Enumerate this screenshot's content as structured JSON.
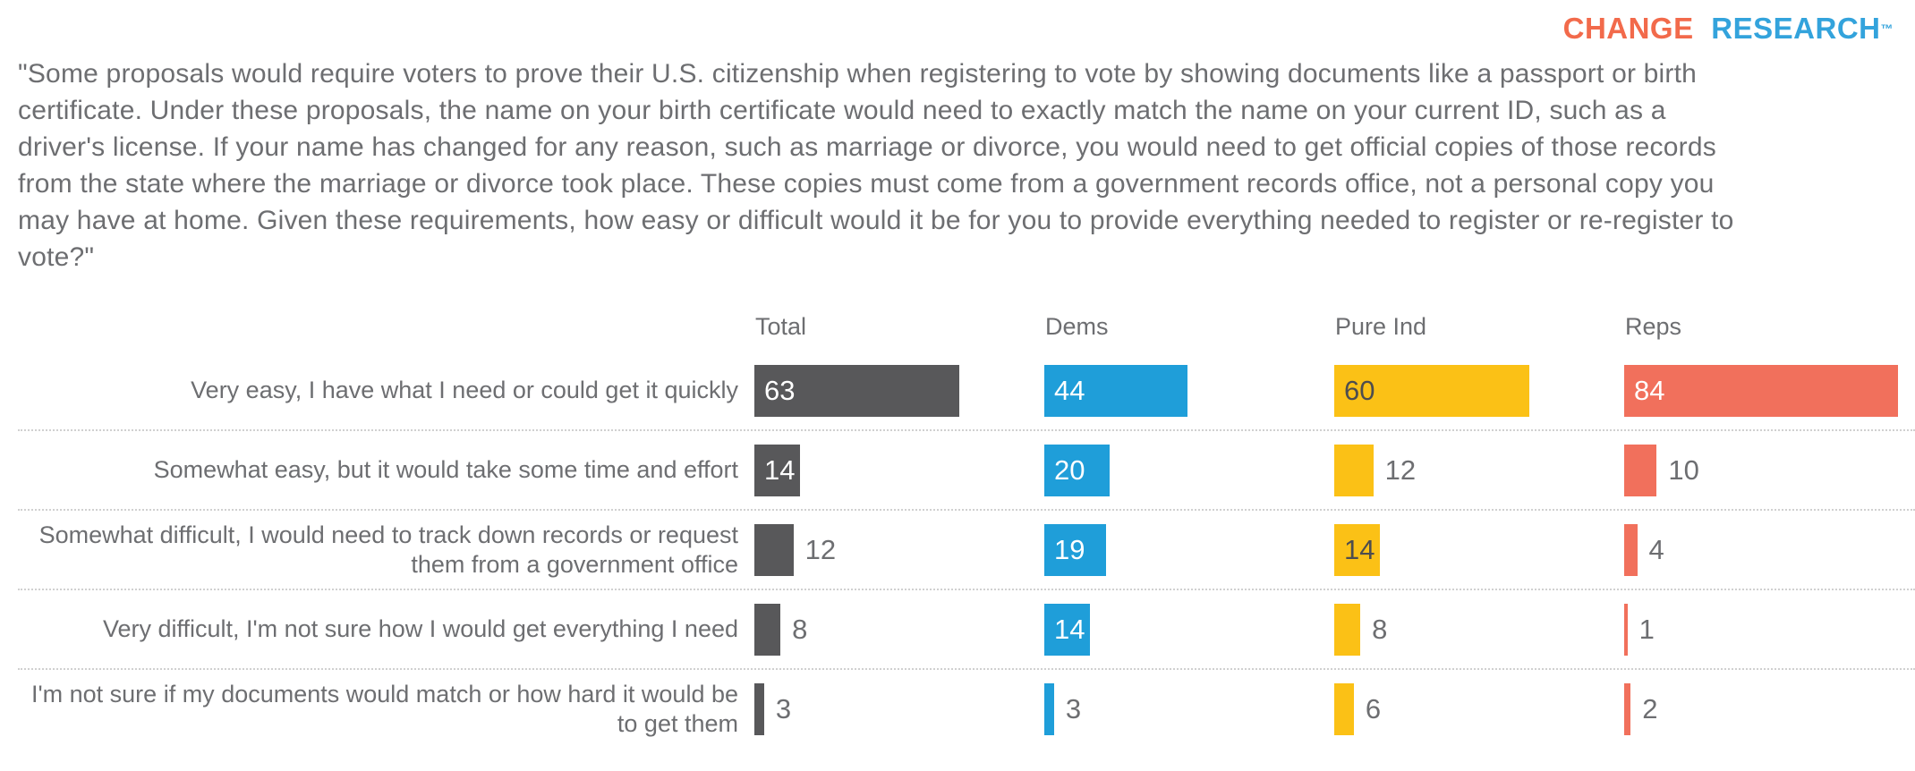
{
  "brand": {
    "name": "CHANGE RESEARCH",
    "word1": "CHANGE",
    "word2": "RESEARCH",
    "trademark": "™",
    "word1_color": "#F26A4B",
    "word2_color": "#33A3DC"
  },
  "question": "\"Some proposals would require voters to prove their U.S. citizenship when registering to vote by showing documents like a passport or birth certificate. Under these proposals, the name on your birth certificate would need to exactly match the name on your current ID, such as a driver's license. If your name has changed for any reason, such as marriage or divorce, you would need to get official copies of those records from the state where the marriage or divorce took place. These copies must come from a government records office, not a personal copy you may have at home. Given these requirements, how easy or difficult would it be for you to provide everything needed to register or re-register to vote?\"",
  "chart_data": {
    "type": "bar",
    "orientation": "horizontal",
    "value_unit": "percent",
    "xlim": [
      0,
      100
    ],
    "grid": "dotted-row-separators",
    "legend_position": "column-headers-top",
    "categories": [
      "Very easy, I have what I need or could get it quickly",
      "Somewhat easy, but it would take some time and effort",
      "Somewhat difficult, I would need to track down records or request them from a government office",
      "Very difficult, I'm not sure how I would get everything I need",
      "I'm not sure if my documents would match or how hard it would be to get them"
    ],
    "series": [
      {
        "name": "Total",
        "color": "#58585A",
        "value_label_color_inside": "#FFFFFF",
        "values": [
          63,
          14,
          12,
          8,
          3
        ]
      },
      {
        "name": "Dems",
        "color": "#1F9ED9",
        "value_label_color_inside": "#FFFFFF",
        "values": [
          44,
          20,
          19,
          14,
          3
        ]
      },
      {
        "name": "Pure Ind",
        "color": "#FBC116",
        "value_label_color_inside": "#4D4D4F",
        "values": [
          60,
          12,
          14,
          8,
          6
        ]
      },
      {
        "name": "Reps",
        "color": "#F1705C",
        "value_label_color_inside": "#FFFFFF",
        "values": [
          84,
          10,
          4,
          1,
          2
        ]
      }
    ],
    "value_label_color_outside": "#6D6E71",
    "header_text_color": "#6D6E71",
    "row_label_text_color": "#6D6E71"
  }
}
